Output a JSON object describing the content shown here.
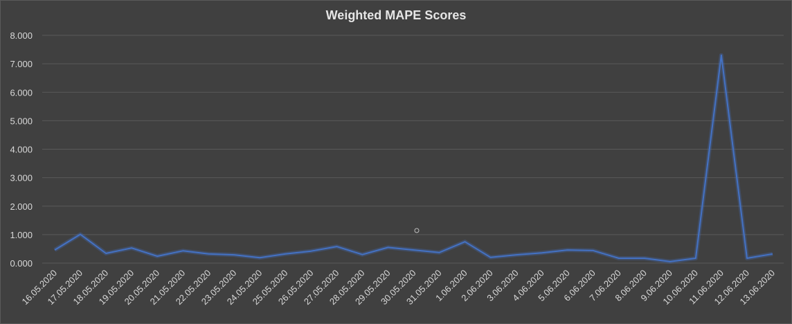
{
  "chart_data": {
    "type": "line",
    "title": "Weighted MAPE Scores",
    "xlabel": "",
    "ylabel": "",
    "ylim": [
      0,
      8
    ],
    "yticks": [
      "0.000",
      "1.000",
      "2.000",
      "3.000",
      "4.000",
      "5.000",
      "6.000",
      "7.000",
      "8.000"
    ],
    "grid": true,
    "legend": "none",
    "line_color": "#4472c4",
    "categories": [
      "16.05.2020",
      "17.05.2020",
      "18.05.2020",
      "19.05.2020",
      "20.05.2020",
      "21.05.2020",
      "22.05.2020",
      "23.05.2020",
      "24.05.2020",
      "25.05.2020",
      "26.05.2020",
      "27.05.2020",
      "28.05.2020",
      "29.05.2020",
      "30.05.2020",
      "31.05.2020",
      "1.06.2020",
      "2.06.2020",
      "3.06.2020",
      "4.06.2020",
      "5.06.2020",
      "6.06.2020",
      "7.06.2020",
      "8.06.2020",
      "9.06.2020",
      "10.06.2020",
      "11.06.2020",
      "12.06.2020",
      "13.06.2020"
    ],
    "series": [
      {
        "values": [
          0.46,
          1.01,
          0.34,
          0.53,
          0.24,
          0.43,
          0.32,
          0.29,
          0.19,
          0.32,
          0.42,
          0.58,
          0.3,
          0.55,
          0.46,
          0.37,
          0.75,
          0.2,
          0.29,
          0.36,
          0.46,
          0.44,
          0.17,
          0.17,
          0.05,
          0.17,
          7.3,
          0.17,
          0.32
        ]
      }
    ]
  }
}
